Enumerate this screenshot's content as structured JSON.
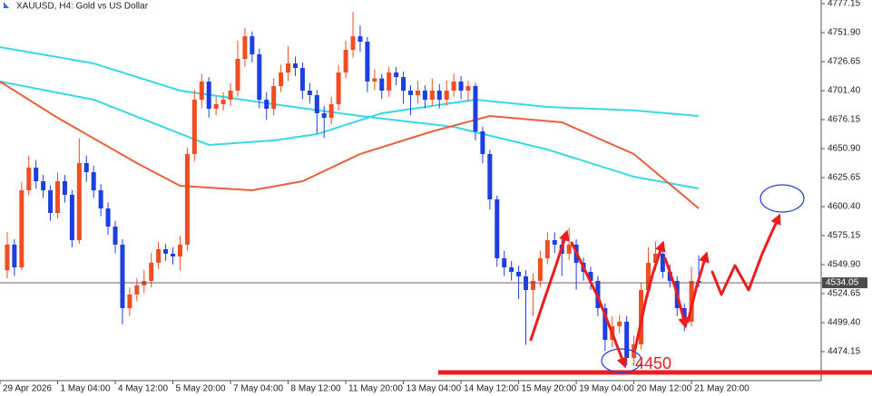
{
  "chart_data": {
    "type": "candlestick",
    "title": "XAUUSD, H4:  Gold vs US Dollar",
    "up_color": "#f04d23",
    "down_color": "#1c3fe0",
    "grid": false,
    "x": [
      0,
      1,
      2,
      3,
      4,
      5,
      6,
      7,
      8,
      9,
      10,
      11,
      12,
      13,
      14,
      15,
      16,
      17,
      18,
      19,
      20,
      21,
      22,
      23,
      24,
      25,
      26,
      27,
      28,
      29,
      30,
      31,
      32,
      33,
      34,
      35,
      36,
      37,
      38,
      39,
      40,
      41,
      42,
      43,
      44,
      45,
      46,
      47,
      48,
      49,
      50,
      51,
      52,
      53,
      54,
      55,
      56,
      57,
      58,
      59,
      60,
      61,
      62,
      63,
      64,
      65,
      66,
      67,
      68,
      69,
      70,
      71,
      72,
      73,
      74,
      75,
      76,
      77,
      78,
      79,
      80,
      81,
      82,
      83,
      84,
      85,
      86,
      87,
      88,
      89,
      90,
      91,
      92,
      93,
      94,
      95,
      96
    ],
    "open": [
      4545.0,
      4567.3,
      4547.5,
      4614.6,
      4634.3,
      4622.5,
      4614.6,
      4594.9,
      4622.5,
      4610.7,
      4571.2,
      4638.3,
      4630.4,
      4614.6,
      4598.8,
      4583.0,
      4567.3,
      4512.0,
      4523.9,
      4531.8,
      4535.7,
      4551.5,
      4563.3,
      4559.4,
      4557.0,
      4567.3,
      4646.2,
      4693.5,
      4709.3,
      4685.6,
      4689.6,
      4693.5,
      4701.4,
      4729.0,
      4748.7,
      4733.0,
      4693.5,
      4685.6,
      4705.3,
      4717.2,
      4725.1,
      4721.1,
      4701.4,
      4697.5,
      4681.7,
      4677.7,
      4689.6,
      4717.2,
      4736.9,
      4748.7,
      4744.0,
      4709.3,
      4712.0,
      4701.4,
      4717.2,
      4713.2,
      4701.4,
      4697.5,
      4701.4,
      4693.5,
      4701.4,
      4693.5,
      4701.4,
      4709.3,
      4701.4,
      4705.3,
      4665.9,
      4646.2,
      4606.7,
      4555.4,
      4547.5,
      4543.6,
      4539.7,
      4527.8,
      4535.7,
      4555.4,
      4571.2,
      4567.3,
      4559.4,
      4567.3,
      4551.5,
      4543.6,
      4535.7,
      4512.0,
      4484.4,
      4496.3,
      4500.2,
      4468.6,
      4480.5,
      4527.8,
      4551.5,
      4559.4,
      4543.6,
      4535.7,
      4512.0,
      4500.2,
      4535.7
    ],
    "high": [
      4578,
      4572,
      4622,
      4645,
      4641,
      4628,
      4619,
      4630,
      4628,
      4615,
      4660,
      4645,
      4636,
      4620,
      4604,
      4588,
      4572,
      4530,
      4538,
      4545,
      4560,
      4570,
      4568,
      4565,
      4575,
      4652,
      4702,
      4716,
      4713,
      4696,
      4700,
      4708,
      4745,
      4756,
      4753,
      4738,
      4700,
      4712,
      4724,
      4740,
      4731,
      4726,
      4708,
      4702,
      4688,
      4696,
      4724,
      4745,
      4770,
      4758,
      4748,
      4720,
      4716,
      4722,
      4722,
      4718,
      4706,
      4710,
      4706,
      4712,
      4707,
      4710,
      4716,
      4714,
      4710,
      4708,
      4670,
      4650,
      4610,
      4562,
      4553,
      4549,
      4545,
      4542,
      4562,
      4578,
      4578,
      4573,
      4582,
      4572,
      4556,
      4548,
      4540,
      4516,
      4505,
      4506,
      4505,
      4488,
      4534,
      4565,
      4570,
      4564,
      4550,
      4540,
      4516,
      4548,
      4558
    ],
    "low": [
      4538,
      4540,
      4545,
      4610,
      4616,
      4608,
      4588,
      4590,
      4604,
      4565,
      4568,
      4622,
      4608,
      4592,
      4576,
      4560,
      4498,
      4505,
      4518,
      4525,
      4530,
      4546,
      4553,
      4550,
      4545,
      4562,
      4640,
      4686,
      4678,
      4680,
      4684,
      4688,
      4696,
      4722,
      4726,
      4686,
      4676,
      4680,
      4700,
      4710,
      4714,
      4694,
      4690,
      4664,
      4660,
      4672,
      4684,
      4712,
      4730,
      4735,
      4700,
      4702,
      4694,
      4696,
      4706,
      4690,
      4680,
      4690,
      4686,
      4688,
      4686,
      4688,
      4696,
      4694,
      4692,
      4658,
      4638,
      4598,
      4548,
      4540,
      4536,
      4520,
      4480,
      4505,
      4530,
      4550,
      4560,
      4540,
      4554,
      4528,
      4536,
      4528,
      4505,
      4475,
      4478,
      4490,
      4462,
      4462,
      4476,
      4522,
      4545,
      4538,
      4530,
      4505,
      4492,
      4496,
      4530
    ],
    "close": [
      4567.3,
      4547.5,
      4614.6,
      4634.3,
      4622.5,
      4614.6,
      4594.9,
      4622.5,
      4610.7,
      4571.2,
      4638.3,
      4630.4,
      4614.6,
      4598.8,
      4583.0,
      4567.3,
      4512.0,
      4523.9,
      4531.8,
      4535.7,
      4551.5,
      4563.3,
      4559.4,
      4557.0,
      4567.3,
      4646.2,
      4693.5,
      4709.3,
      4685.6,
      4689.6,
      4693.5,
      4701.4,
      4729.0,
      4748.7,
      4733.0,
      4693.5,
      4685.6,
      4705.3,
      4717.2,
      4725.1,
      4721.1,
      4701.4,
      4697.5,
      4681.7,
      4677.7,
      4689.6,
      4717.2,
      4736.9,
      4748.7,
      4744.0,
      4709.3,
      4712.0,
      4701.4,
      4717.2,
      4713.2,
      4701.4,
      4697.5,
      4701.4,
      4693.5,
      4701.4,
      4693.5,
      4701.4,
      4709.3,
      4701.4,
      4705.3,
      4665.9,
      4646.2,
      4606.7,
      4555.4,
      4547.5,
      4543.6,
      4539.7,
      4527.8,
      4535.7,
      4555.4,
      4571.2,
      4567.3,
      4559.4,
      4567.3,
      4551.5,
      4543.6,
      4535.7,
      4512.0,
      4484.4,
      4496.3,
      4500.2,
      4468.6,
      4480.5,
      4527.8,
      4551.5,
      4559.4,
      4543.6,
      4535.7,
      4512.0,
      4500.2,
      4535.7,
      4534.05
    ],
    "lines": [
      {
        "color": "#38d9e6",
        "x": [
          -1,
          12,
          24,
          37,
          49,
          62,
          75,
          87,
          96
        ],
        "values": [
          4739.3,
          4725.1,
          4701.4,
          4689.6,
          4679.3,
          4669.8,
          4650.1,
          4626.4,
          4616.2
        ]
      },
      {
        "color": "#38d9e6",
        "x": [
          -1,
          12,
          28,
          37,
          43,
          52,
          65,
          75,
          87,
          96
        ],
        "values": [
          4709.3,
          4693.5,
          4654.1,
          4658.0,
          4663.5,
          4681.7,
          4693.5,
          4687.2,
          4684.1,
          4679.3
        ]
      },
      {
        "color": "#e8603c",
        "x": [
          -1,
          7,
          18,
          24,
          34,
          41,
          49,
          59,
          67,
          77,
          87,
          96
        ],
        "values": [
          4709.3,
          4677.7,
          4638.3,
          4618.5,
          4614.6,
          4622.5,
          4646.2,
          4665.9,
          4679.3,
          4673.8,
          4646.2,
          4598.8
        ]
      }
    ],
    "current_price": 4534.05,
    "annotation": "4450",
    "xlim": [
      -1,
      113
    ],
    "ylim": [
      4448.9,
      4780.3
    ],
    "xticks": [
      {
        "value": -1,
        "label": "29 Apr 2026"
      },
      {
        "value": 7,
        "label": "1 May 04:00"
      },
      {
        "value": 15,
        "label": "4 May 12:00"
      },
      {
        "value": 23,
        "label": "5 May 20:00"
      },
      {
        "value": 31,
        "label": "7 May 04:00"
      },
      {
        "value": 39,
        "label": "8 May 12:00"
      },
      {
        "value": 47,
        "label": "11 May 20:00"
      },
      {
        "value": 55,
        "label": "13 May 04:00"
      },
      {
        "value": 63,
        "label": "14 May 12:00"
      },
      {
        "value": 71,
        "label": "15 May 20:00"
      },
      {
        "value": 79,
        "label": "19 May 04:00"
      },
      {
        "value": 87,
        "label": "20 May 12:00"
      },
      {
        "value": 95,
        "label": "21 May 20:00"
      }
    ],
    "yticks": [
      4777.15,
      {
        "value": 4751.9,
        "label": "4751.90"
      },
      4726.65,
      {
        "value": 4701.4,
        "label": "4701.40"
      },
      4676.15,
      {
        "value": 4650.9,
        "label": "4650.90"
      },
      4625.65,
      {
        "value": 4600.4,
        "label": "4600.40"
      },
      4575.15,
      {
        "value": 4549.9,
        "label": "4549.90"
      },
      4524.65,
      {
        "value": 4499.4,
        "label": "4499.40"
      },
      4474.15
    ]
  }
}
